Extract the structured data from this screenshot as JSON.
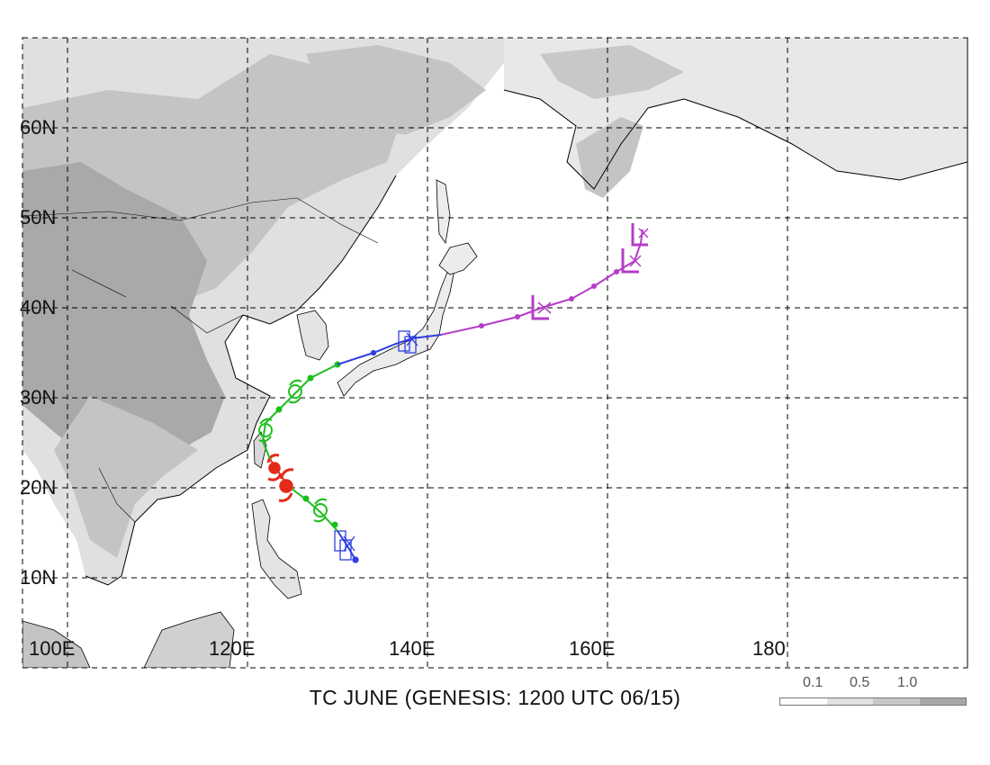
{
  "title": "TC JUNE (GENESIS: 1200 UTC 06/15)",
  "lat_labels": [
    "60N",
    "50N",
    "40N",
    "30N",
    "20N",
    "10N"
  ],
  "lon_labels": [
    "100E",
    "120E",
    "140E",
    "160E",
    "180"
  ],
  "legend": {
    "labels": [
      "0.1",
      "0.5",
      "1.0"
    ],
    "colors": [
      "#ffffff",
      "#e2e2e2",
      "#c8c8c8",
      "#a8a8a8"
    ]
  },
  "colors": {
    "track_blue": "#2f3fe0",
    "track_green": "#1dbf1d",
    "track_red": "#e42a1a",
    "track_magenta": "#b53cc8",
    "land_light": "#e0e0e0",
    "land_mid": "#c4c4c4",
    "land_dark": "#a9a9a9"
  },
  "track": {
    "description_stages": [
      "blue",
      "green",
      "red",
      "green",
      "blue",
      "magenta"
    ]
  }
}
